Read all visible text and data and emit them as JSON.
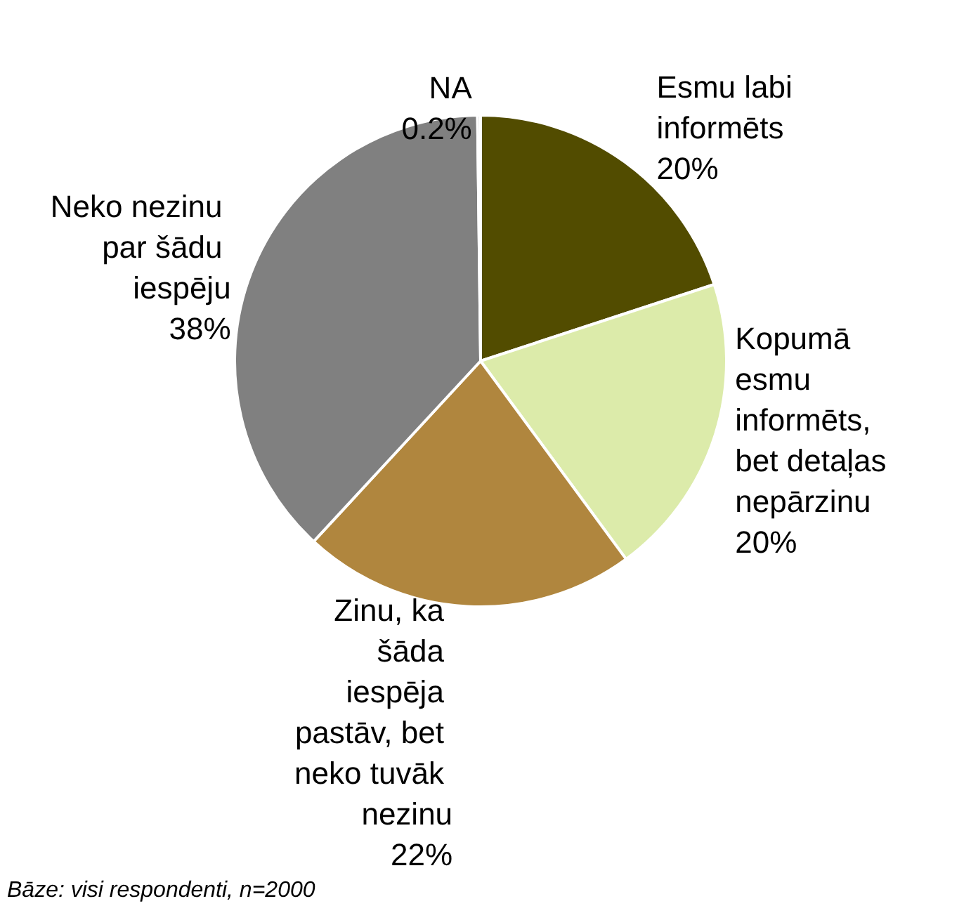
{
  "chart_data": {
    "type": "pie",
    "categories": [
      "Esmu labi informēts",
      "Kopumā esmu informēts, bet detaļas nepārzinu",
      "Zinu, ka šāda iespēja pastāv, bet neko tuvāk nezinu",
      "Neko nezinu par šādu iespēju",
      "NA"
    ],
    "values": [
      20,
      20,
      22,
      38,
      0.2
    ],
    "value_labels": [
      "20%",
      "20%",
      "22%",
      "38%",
      "0.2%"
    ],
    "colors": [
      "#524c00",
      "#dcebaa",
      "#b0863e",
      "#808080",
      "#c0c0c0"
    ],
    "legend": false,
    "annotations": [
      "Bāze: visi respondenti, n=2000"
    ]
  }
}
